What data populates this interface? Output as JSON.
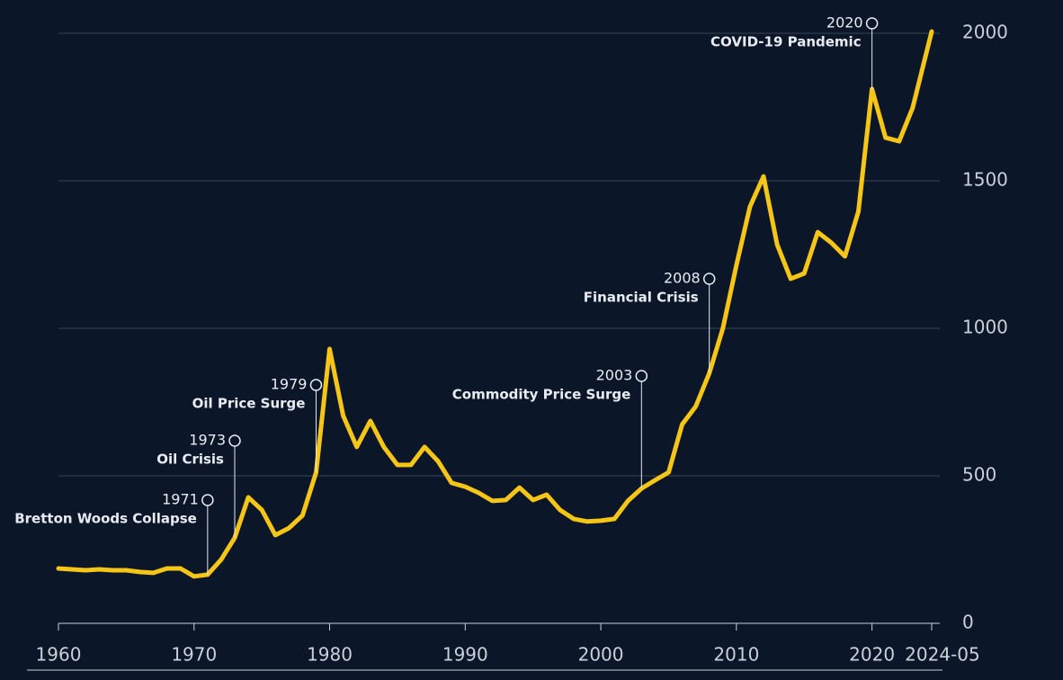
{
  "chart_data": {
    "type": "line",
    "x": [
      1960,
      1961,
      1962,
      1963,
      1964,
      1965,
      1966,
      1967,
      1968,
      1969,
      1970,
      1971,
      1972,
      1973,
      1974,
      1975,
      1976,
      1977,
      1978,
      1979,
      1980,
      1981,
      1982,
      1983,
      1984,
      1985,
      1986,
      1987,
      1988,
      1989,
      1990,
      1991,
      1992,
      1993,
      1994,
      1995,
      1996,
      1997,
      1998,
      1999,
      2000,
      2001,
      2002,
      2003,
      2004,
      2005,
      2006,
      2007,
      2008,
      2009,
      2010,
      2011,
      2012,
      2013,
      2014,
      2015,
      2016,
      2017,
      2018,
      2019,
      2020,
      2021,
      2022,
      2023,
      2024.4
    ],
    "values": [
      186,
      183,
      180,
      183,
      180,
      180,
      174,
      171,
      186,
      186,
      159,
      165,
      216,
      290,
      427,
      384,
      299,
      323,
      366,
      512,
      930,
      704,
      598,
      686,
      598,
      537,
      537,
      598,
      549,
      476,
      463,
      442,
      415,
      418,
      460,
      418,
      436,
      384,
      354,
      345,
      348,
      354,
      415,
      457,
      485,
      512,
      674,
      735,
      848,
      1000,
      1213,
      1412,
      1515,
      1284,
      1168,
      1186,
      1326,
      1290,
      1244,
      1396,
      1811,
      1646,
      1634,
      1747,
      2006
    ],
    "color": "#f5c518",
    "xlim": [
      1960,
      2025
    ],
    "xticks": [
      1960,
      1970,
      1980,
      1990,
      2000,
      2010,
      2020,
      {
        "value": 2024.4,
        "label": "2024-05"
      }
    ],
    "ylim": [
      0,
      2000
    ],
    "yticks": [
      0,
      500,
      1000,
      1500,
      2000
    ],
    "grid": true,
    "annotations": [
      {
        "x": 1971,
        "label": "Bretton Woods Collapse"
      },
      {
        "x": 1973,
        "label": "Oil Crisis"
      },
      {
        "x": 1979,
        "label": "Oil Price Surge"
      },
      {
        "x": 2003,
        "label": "Commodity Price Surge"
      },
      {
        "x": 2008,
        "label": "Financial Crisis"
      },
      {
        "x": 2020,
        "label": "COVID-19 Pandemic"
      }
    ]
  }
}
